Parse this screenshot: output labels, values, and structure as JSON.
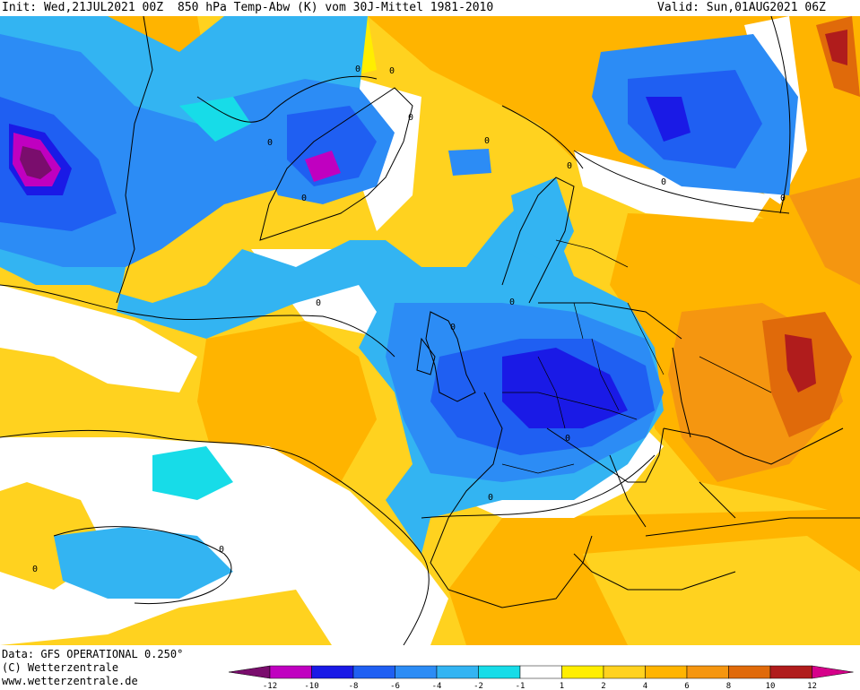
{
  "header": {
    "init_label": "Init:",
    "init_value": "Wed,21JUL2021 00Z",
    "title": "850 hPa Temp-Abw (K) vom 30J-Mittel 1981-2010",
    "valid_label": "Valid:",
    "valid_value": "Sun,01AUG2021 06Z"
  },
  "footer": {
    "data_source": "Data: GFS OPERATIONAL 0.250°",
    "copyright": "(C) Wetterzentrale",
    "website": "www.wetterzentrale.de"
  },
  "legend": {
    "ticks": [
      "-12",
      "-10",
      "-8",
      "-6",
      "-4",
      "-2",
      "-1",
      "1",
      "2",
      "4",
      "6",
      "8",
      "10",
      "12"
    ],
    "colors": {
      "lt_m12": "#7a0d6d",
      "m12_m10": "#c000c0",
      "m10_m8": "#1a1ae6",
      "m8_m6": "#1f5ff2",
      "m6_m4": "#2c8cf5",
      "m4_m2": "#33b4f2",
      "m2_m1": "#17dce8",
      "m1_p1": "#ffffff",
      "p1_p2": "#ffee00",
      "p2_p4": "#ffd21f",
      "p4_p6": "#ffb400",
      "p6_p8": "#f59610",
      "p8_p10": "#e06a0a",
      "p10_p12": "#b01c1c",
      "gt_p12": "#d6008a"
    }
  },
  "contour_labels": [
    "0",
    "0",
    "0",
    "0",
    "0",
    "0",
    "0",
    "0",
    "0",
    "0",
    "0",
    "0",
    "0",
    "0",
    "0",
    "0"
  ]
}
